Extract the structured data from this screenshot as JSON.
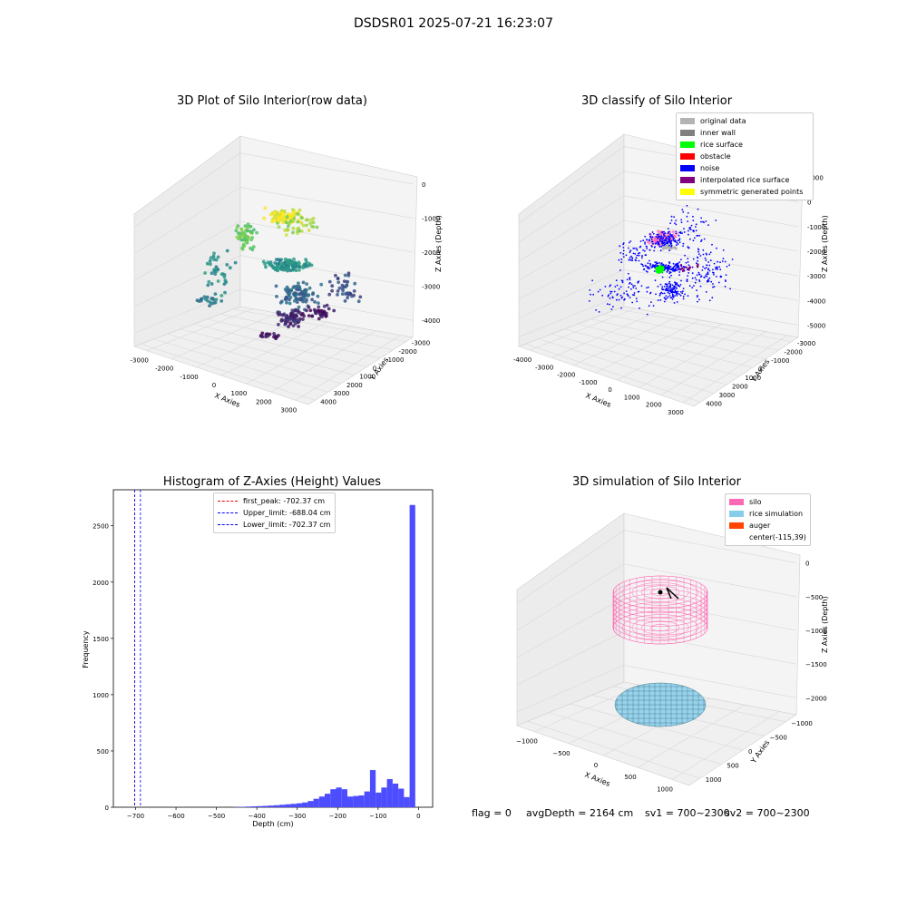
{
  "suptitle": "DSDSR01 2025-07-21 16:23:07",
  "footer": {
    "flag": "flag = 0",
    "avg": "avgDepth = 2164 cm",
    "sv1": "sv1 = 700~2300",
    "sv2": "sv2 = 700~2300"
  },
  "chart_data": [
    {
      "type": "scatter",
      "title": "3D Plot of Silo Interior(row data)",
      "xlabel": "X Axies",
      "ylabel": "Y Axies",
      "zlabel": "Z Axies (Depth)",
      "xticks": [
        "-3000",
        "-2000",
        "-1000",
        "0",
        "1000",
        "2000",
        "3000"
      ],
      "yticks": [
        "-3000",
        "-2000",
        "-1000",
        "0",
        "1000",
        "2000",
        "3000",
        "4000"
      ],
      "zticks": [
        "0",
        "-1000",
        "-2000",
        "-3000",
        "-4000"
      ],
      "colormap": "viridis (by depth)"
    },
    {
      "type": "scatter",
      "title": "3D classify of Silo Interior",
      "xlabel": "X Axies",
      "ylabel": "Y Axies",
      "zlabel": "Z Axies (Depth)",
      "xticks": [
        "-4000",
        "-3000",
        "-2000",
        "-1000",
        "0",
        "1000",
        "2000",
        "3000"
      ],
      "yticks": [
        "-3000",
        "-2000",
        "-1000",
        "0",
        "1000",
        "2000",
        "3000",
        "4000"
      ],
      "zticks": [
        "1000",
        "0",
        "-1000",
        "-2000",
        "-3000",
        "-4000",
        "-5000"
      ],
      "legend": [
        {
          "name": "original data",
          "color": "#b3b3b3"
        },
        {
          "name": "inner wall",
          "color": "#808080"
        },
        {
          "name": "rice surface",
          "color": "#00ff00"
        },
        {
          "name": "obstacle",
          "color": "#ff0000"
        },
        {
          "name": "noise",
          "color": "#0000ff"
        },
        {
          "name": "interpolated rice surface",
          "color": "#800080"
        },
        {
          "name": "symmetric generated points",
          "color": "#ffff00"
        }
      ],
      "legend_position": "top-right"
    },
    {
      "type": "bar",
      "title": "Histogram of Z-Axies (Height) Values",
      "xlabel": "Depth (cm)",
      "ylabel": "Frequency",
      "xlim": [
        -755,
        35
      ],
      "ylim": [
        0,
        2820
      ],
      "xticks": [
        "−700",
        "−600",
        "−500",
        "−400",
        "−300",
        "−200",
        "−100",
        "0"
      ],
      "yticks": [
        "0",
        "500",
        "1000",
        "1500",
        "2000",
        "2500"
      ],
      "bin_width": 14.05,
      "bins": [
        {
          "x": -449,
          "count": 3
        },
        {
          "x": -435,
          "count": 4
        },
        {
          "x": -421,
          "count": 6
        },
        {
          "x": -407,
          "count": 8
        },
        {
          "x": -393,
          "count": 10
        },
        {
          "x": -379,
          "count": 12
        },
        {
          "x": -365,
          "count": 15
        },
        {
          "x": -351,
          "count": 18
        },
        {
          "x": -337,
          "count": 22
        },
        {
          "x": -323,
          "count": 26
        },
        {
          "x": -309,
          "count": 30
        },
        {
          "x": -295,
          "count": 35
        },
        {
          "x": -281,
          "count": 42
        },
        {
          "x": -267,
          "count": 55
        },
        {
          "x": -253,
          "count": 75
        },
        {
          "x": -239,
          "count": 95
        },
        {
          "x": -225,
          "count": 120
        },
        {
          "x": -211,
          "count": 160
        },
        {
          "x": -197,
          "count": 175
        },
        {
          "x": -183,
          "count": 160
        },
        {
          "x": -169,
          "count": 95
        },
        {
          "x": -155,
          "count": 100
        },
        {
          "x": -141,
          "count": 105
        },
        {
          "x": -127,
          "count": 140
        },
        {
          "x": -113,
          "count": 330
        },
        {
          "x": -99,
          "count": 130
        },
        {
          "x": -85,
          "count": 175
        },
        {
          "x": -71,
          "count": 250
        },
        {
          "x": -57,
          "count": 210
        },
        {
          "x": -43,
          "count": 165
        },
        {
          "x": -29,
          "count": 90
        },
        {
          "x": -15,
          "count": 2685
        }
      ],
      "lines": [
        {
          "name": "first_peak: -702.37 cm",
          "x": -702.37,
          "color": "#ff0000"
        },
        {
          "name": "Upper_limit: -688.04 cm",
          "x": -688.04,
          "color": "#0000ff"
        },
        {
          "name": "Lower_limit: -702.37 cm",
          "x": -702.37,
          "color": "#0000ff"
        }
      ],
      "bar_color": "#4d4dff",
      "legend_position": "top-center"
    },
    {
      "type": "scatter",
      "title": "3D simulation of Silo Interior",
      "xlabel": "X Axies",
      "ylabel": "Y Axies",
      "zlabel": "Z Axies (Depth)",
      "xticks": [
        "−1000",
        "−500",
        "0",
        "500",
        "1000"
      ],
      "yticks": [
        "−1000",
        "−500",
        "0",
        "500",
        "1000"
      ],
      "zticks": [
        "0",
        "−500",
        "−1000",
        "−1500",
        "−2000"
      ],
      "legend": [
        {
          "name": "silo",
          "color": "#ff69b4"
        },
        {
          "name": "rice simulation",
          "color": "#87ceeb"
        },
        {
          "name": "auger",
          "color": "#ff4500"
        },
        {
          "name": "center(-115,39)",
          "color": ""
        }
      ],
      "legend_position": "top-right"
    }
  ]
}
